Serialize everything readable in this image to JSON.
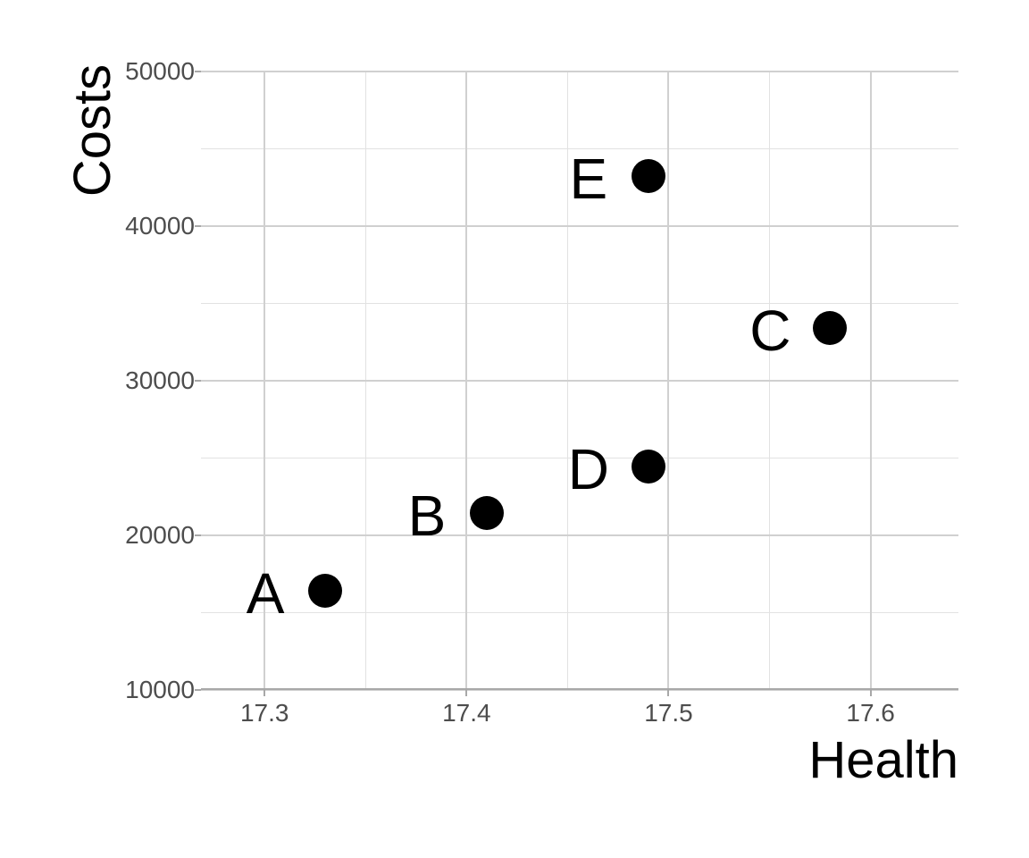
{
  "figure": {
    "background_color": "#FFFFFF",
    "tick_label_color": "#4D4D4D",
    "axis_title_color": "#000000",
    "point_color": "#000000",
    "point_label_color": "#000000",
    "grid_major_color": "#D0D0D0",
    "grid_minor_color": "#E2E2E2",
    "axis_line_color": "#A8A8A8"
  },
  "chart_data": {
    "type": "scatter",
    "title": "",
    "xlabel": "Health",
    "ylabel": "Costs",
    "points": [
      {
        "label": "A",
        "x": 17.33,
        "y": 16400
      },
      {
        "label": "B",
        "x": 17.41,
        "y": 21450
      },
      {
        "label": "C",
        "x": 17.58,
        "y": 33400
      },
      {
        "label": "D",
        "x": 17.49,
        "y": 24450
      },
      {
        "label": "E",
        "x": 17.49,
        "y": 43250
      }
    ],
    "xlim": [
      17.2685,
      17.6435
    ],
    "ylim": [
      10000,
      50000
    ],
    "x_major_ticks": [
      17.3,
      17.4,
      17.5,
      17.6
    ],
    "x_tick_labels": [
      "17.3",
      "17.4",
      "17.5",
      "17.6"
    ],
    "x_minor_ticks": [
      17.35,
      17.45,
      17.55
    ],
    "y_major_ticks": [
      50000,
      40000,
      30000,
      20000,
      10000
    ],
    "y_tick_labels": [
      "50000",
      "40000",
      "30000",
      "20000",
      "10000"
    ],
    "y_minor_ticks": [
      45000,
      35000,
      25000,
      15000
    ],
    "grid": true,
    "legend": false
  }
}
